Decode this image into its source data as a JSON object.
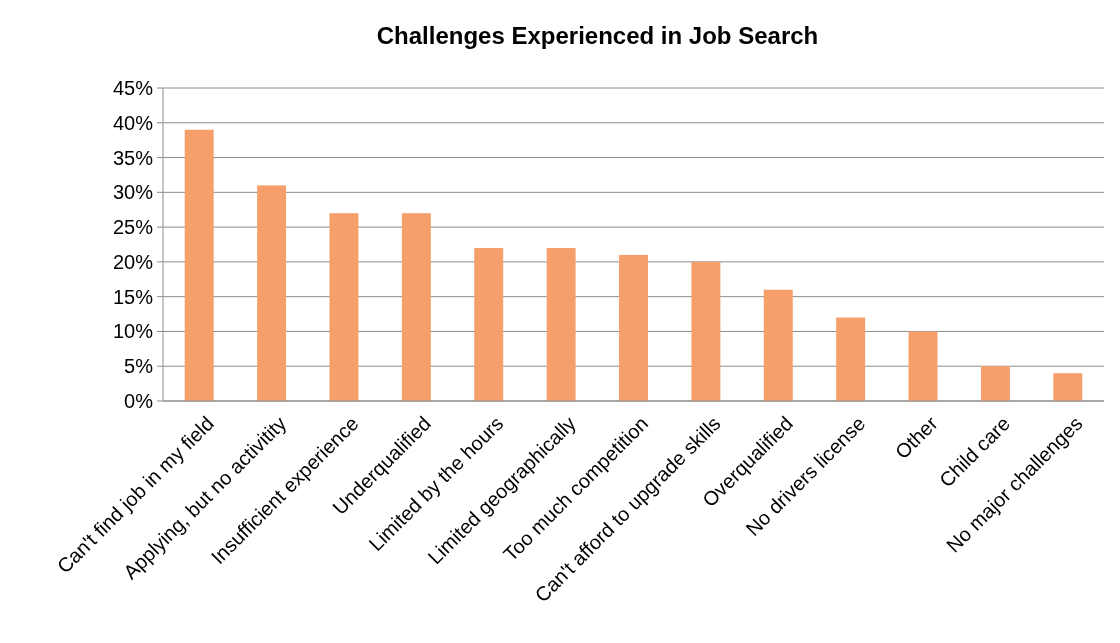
{
  "chart_data": {
    "type": "bar",
    "title": "Challenges Experienced in Job Search",
    "categories": [
      "Can't find job in my field",
      "Applying, but no activitity",
      "Insufficient experience",
      "Underqualified",
      "Limited by the hours",
      "Limited geographically",
      "Too much competition",
      "Can't afford to upgrade skills",
      "Overqualified",
      "No drivers license",
      "Other",
      "Child care",
      "No major challenges"
    ],
    "values": [
      39,
      31,
      27,
      27,
      22,
      22,
      21,
      20,
      16,
      12,
      10,
      5,
      4
    ],
    "color": "#f79f6b",
    "ylim": [
      0,
      45
    ],
    "yticks": [
      {
        "value": 0,
        "label": "0%"
      },
      {
        "value": 5,
        "label": "5%"
      },
      {
        "value": 10,
        "label": "10%"
      },
      {
        "value": 15,
        "label": "15%"
      },
      {
        "value": 20,
        "label": "20%"
      },
      {
        "value": 25,
        "label": "25%"
      },
      {
        "value": 30,
        "label": "30%"
      },
      {
        "value": 35,
        "label": "35%"
      },
      {
        "value": 40,
        "label": "40%"
      },
      {
        "value": 45,
        "label": "45%"
      }
    ],
    "grid": true
  }
}
